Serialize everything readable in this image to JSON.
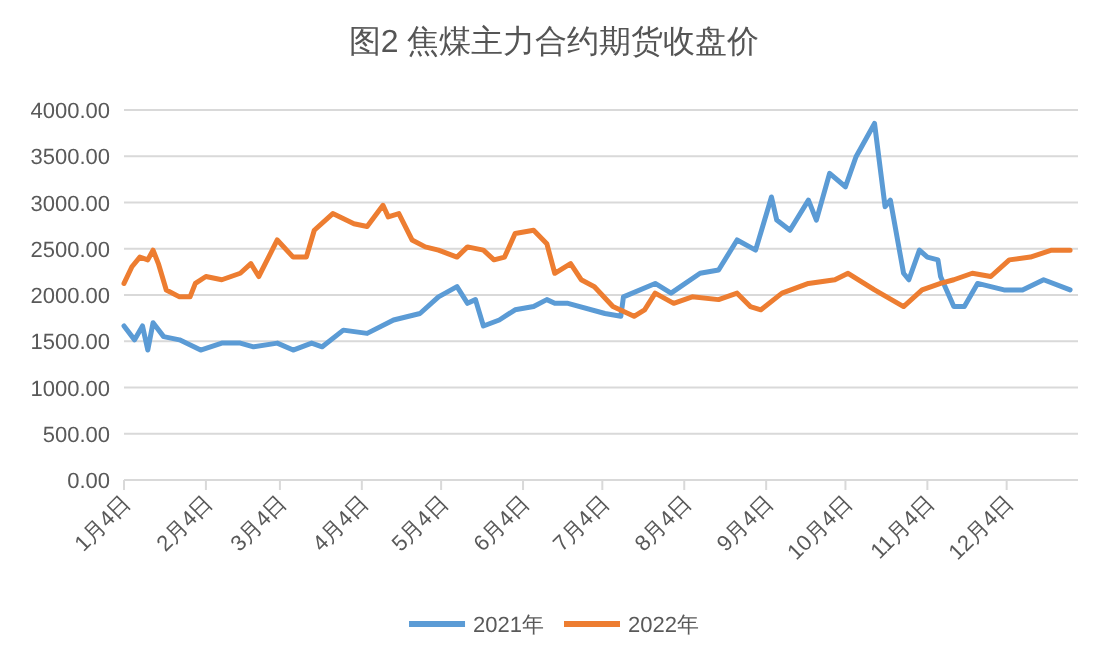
{
  "chart_data": {
    "type": "line",
    "title": "图2  焦煤主力合约期货收盘价",
    "xlim": [
      "--01-04",
      "--12-31"
    ],
    "xticks": [
      {
        "value": "--01-04",
        "label": "1月4日"
      },
      {
        "value": "--02-04",
        "label": "2月4日"
      },
      {
        "value": "--03-04",
        "label": "3月4日"
      },
      {
        "value": "--04-04",
        "label": "4月4日"
      },
      {
        "value": "--05-04",
        "label": "5月4日"
      },
      {
        "value": "--06-04",
        "label": "6月4日"
      },
      {
        "value": "--07-04",
        "label": "7月4日"
      },
      {
        "value": "--08-04",
        "label": "8月4日"
      },
      {
        "value": "--09-04",
        "label": "9月4日"
      },
      {
        "value": "--10-04",
        "label": "10月4日"
      },
      {
        "value": "--11-04",
        "label": "11月4日"
      },
      {
        "value": "--12-04",
        "label": "12月4日"
      }
    ],
    "ylim": [
      0,
      4000
    ],
    "yticks": [
      {
        "value": 0,
        "label": "0.00"
      },
      {
        "value": 500,
        "label": "500.00"
      },
      {
        "value": 1000,
        "label": "1000.00"
      },
      {
        "value": 1500,
        "label": "1500.00"
      },
      {
        "value": 2000,
        "label": "2000.00"
      },
      {
        "value": 2500,
        "label": "2500.00"
      },
      {
        "value": 3000,
        "label": "3000.00"
      },
      {
        "value": 3500,
        "label": "3500.00"
      },
      {
        "value": 4000,
        "label": "4000.00"
      }
    ],
    "grid": "y",
    "legend": "bottom",
    "marker": "none",
    "line_style": "solid",
    "series": [
      {
        "name": "2021年",
        "color": "#5b9bd5",
        "x": [
          "--01-04",
          "--01-08",
          "--01-11",
          "--01-13",
          "--01-15",
          "--01-19",
          "--01-25",
          "--02-02",
          "--02-10",
          "--02-17",
          "--02-22",
          "--03-03",
          "--03-09",
          "--03-16",
          "--03-20",
          "--03-28",
          "--04-06",
          "--04-16",
          "--04-26",
          "--05-03",
          "--05-10",
          "--05-14",
          "--05-17",
          "--05-20",
          "--05-26",
          "--06-01",
          "--06-08",
          "--06-13",
          "--06-16",
          "--06-21",
          "--07-05",
          "--07-11",
          "--07-12",
          "--07-24",
          "--07-30",
          "--08-10",
          "--08-17",
          "--08-24",
          "--08-31",
          "--09-06",
          "--09-08",
          "--09-13",
          "--09-20",
          "--09-23",
          "--09-28",
          "--10-04",
          "--10-08",
          "--10-15",
          "--10-19",
          "--10-21",
          "--10-26",
          "--10-28",
          "--11-01",
          "--11-04",
          "--11-08",
          "--11-09",
          "--11-14",
          "--11-18",
          "--11-23",
          "--12-03",
          "--12-10",
          "--12-18",
          "--12-28"
        ],
        "values": [
          1665,
          1515,
          1665,
          1405,
          1700,
          1550,
          1515,
          1405,
          1480,
          1480,
          1440,
          1480,
          1405,
          1480,
          1440,
          1620,
          1585,
          1730,
          1800,
          1980,
          2090,
          1910,
          1950,
          1665,
          1730,
          1840,
          1875,
          1950,
          1910,
          1910,
          1800,
          1770,
          1980,
          2125,
          2020,
          2235,
          2270,
          2595,
          2485,
          3060,
          2810,
          2700,
          3025,
          2810,
          3315,
          3170,
          3495,
          3855,
          2955,
          3025,
          2235,
          2165,
          2485,
          2410,
          2380,
          2200,
          1875,
          1875,
          2125,
          2055,
          2055,
          2165,
          2055
        ]
      },
      {
        "name": "2022年",
        "color": "#ed7d31",
        "x": [
          "--01-04",
          "--01-07",
          "--01-10",
          "--01-13",
          "--01-15",
          "--01-17",
          "--01-20",
          "--01-25",
          "--01-29",
          "--01-31",
          "--02-04",
          "--02-10",
          "--02-17",
          "--02-21",
          "--02-24",
          "--03-03",
          "--03-09",
          "--03-14",
          "--03-17",
          "--03-24",
          "--04-01",
          "--04-06",
          "--04-12",
          "--04-14",
          "--04-18",
          "--04-23",
          "--04-28",
          "--05-03",
          "--05-10",
          "--05-14",
          "--05-20",
          "--05-24",
          "--05-28",
          "--06-01",
          "--06-08",
          "--06-13",
          "--06-16",
          "--06-22",
          "--06-26",
          "--07-01",
          "--07-08",
          "--07-16",
          "--07-20",
          "--07-24",
          "--07-31",
          "--08-07",
          "--08-17",
          "--08-24",
          "--08-29",
          "--09-02",
          "--09-10",
          "--09-20",
          "--09-30",
          "--10-05",
          "--10-15",
          "--10-26",
          "--11-02",
          "--11-09",
          "--11-14",
          "--11-21",
          "--11-28",
          "--12-05",
          "--12-13",
          "--12-21",
          "--12-28"
        ],
        "values": [
          2125,
          2305,
          2410,
          2380,
          2485,
          2340,
          2055,
          1980,
          1980,
          2125,
          2200,
          2165,
          2235,
          2340,
          2200,
          2595,
          2410,
          2410,
          2700,
          2880,
          2770,
          2740,
          2970,
          2845,
          2880,
          2595,
          2520,
          2485,
          2410,
          2520,
          2485,
          2380,
          2410,
          2665,
          2700,
          2555,
          2235,
          2340,
          2165,
          2090,
          1875,
          1770,
          1840,
          2020,
          1910,
          1980,
          1950,
          2020,
          1875,
          1840,
          2020,
          2125,
          2165,
          2235,
          2055,
          1875,
          2055,
          2125,
          2165,
          2235,
          2200,
          2380,
          2410,
          2485,
          2485
        ]
      }
    ]
  }
}
